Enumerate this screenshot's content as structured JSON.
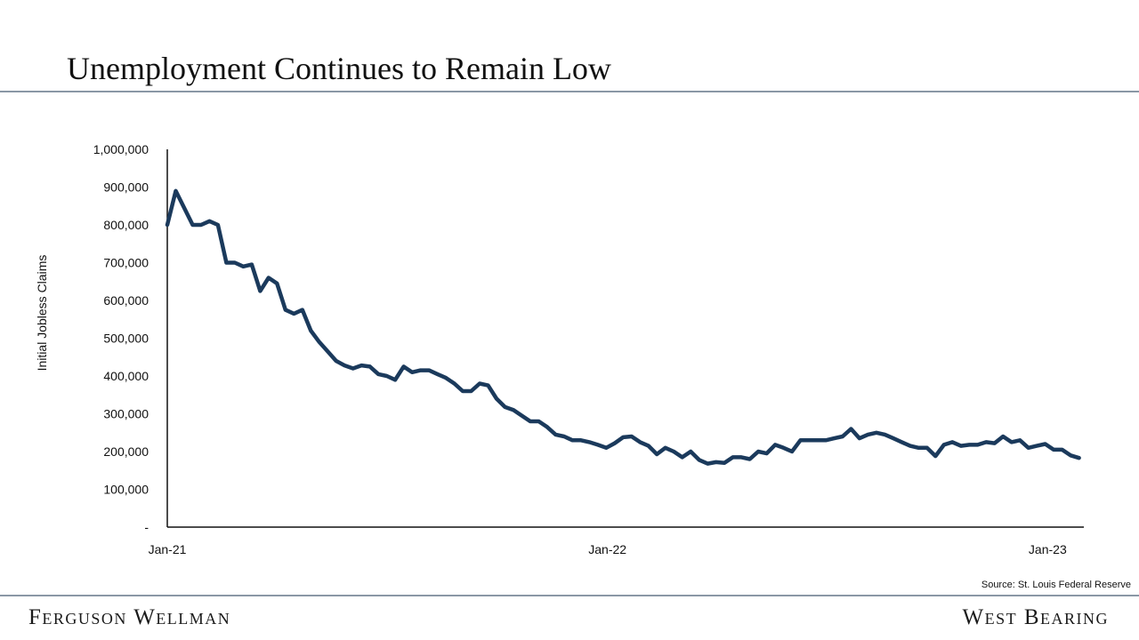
{
  "slide": {
    "title": "Unemployment Continues to Remain Low",
    "source": "Source: St. Louis Federal Reserve",
    "brand_left": "Ferguson Wellman",
    "brand_right": "West Bearing"
  },
  "colors": {
    "line": "#1b3a5c",
    "axis": "#111111",
    "rule": "#8a97a5"
  },
  "chart_data": {
    "type": "line",
    "title": "",
    "xlabel": "",
    "ylabel": "Initial Jobless Claims",
    "x_tick_labels": [
      "Jan-21",
      "Jan-22",
      "Jan-23"
    ],
    "x_start": "2021-01-01",
    "x_end": "2023-01-31",
    "y_tick_labels": [
      "-",
      "100,000",
      "200,000",
      "300,000",
      "400,000",
      "500,000",
      "600,000",
      "700,000",
      "800,000",
      "900,000",
      "1,000,000"
    ],
    "ylim": [
      0,
      1000000
    ],
    "grid": false,
    "legend": "none",
    "series": [
      {
        "name": "",
        "x": [
          "2021-01-01",
          "2021-01-08",
          "2021-01-15",
          "2021-01-22",
          "2021-01-29",
          "2021-02-05",
          "2021-02-12",
          "2021-02-19",
          "2021-02-26",
          "2021-03-05",
          "2021-03-12",
          "2021-03-19",
          "2021-03-26",
          "2021-04-02",
          "2021-04-09",
          "2021-04-16",
          "2021-04-23",
          "2021-04-30",
          "2021-05-07",
          "2021-05-14",
          "2021-05-21",
          "2021-05-28",
          "2021-06-04",
          "2021-06-11",
          "2021-06-18",
          "2021-06-25",
          "2021-07-02",
          "2021-07-09",
          "2021-07-16",
          "2021-07-23",
          "2021-07-30",
          "2021-08-06",
          "2021-08-13",
          "2021-08-20",
          "2021-08-27",
          "2021-09-03",
          "2021-09-10",
          "2021-09-17",
          "2021-09-24",
          "2021-10-01",
          "2021-10-08",
          "2021-10-15",
          "2021-10-22",
          "2021-10-29",
          "2021-11-05",
          "2021-11-12",
          "2021-11-19",
          "2021-11-26",
          "2021-12-03",
          "2021-12-10",
          "2021-12-17",
          "2021-12-24",
          "2021-12-31",
          "2022-01-07",
          "2022-01-14",
          "2022-01-21",
          "2022-01-28",
          "2022-02-04",
          "2022-02-11",
          "2022-02-18",
          "2022-02-25",
          "2022-03-04",
          "2022-03-11",
          "2022-03-18",
          "2022-03-25",
          "2022-04-01",
          "2022-04-08",
          "2022-04-15",
          "2022-04-22",
          "2022-04-29",
          "2022-05-06",
          "2022-05-13",
          "2022-05-20",
          "2022-05-27",
          "2022-06-03",
          "2022-06-10",
          "2022-06-17",
          "2022-06-24",
          "2022-07-01",
          "2022-07-08",
          "2022-07-15",
          "2022-07-22",
          "2022-07-29",
          "2022-08-05",
          "2022-08-12",
          "2022-08-19",
          "2022-08-26",
          "2022-09-02",
          "2022-09-09",
          "2022-09-16",
          "2022-09-23",
          "2022-09-30",
          "2022-10-07",
          "2022-10-14",
          "2022-10-21",
          "2022-10-28",
          "2022-11-04",
          "2022-11-11",
          "2022-11-18",
          "2022-11-25",
          "2022-12-02",
          "2022-12-09",
          "2022-12-16",
          "2022-12-23",
          "2022-12-30",
          "2023-01-06",
          "2023-01-13",
          "2023-01-20",
          "2023-01-27"
        ],
        "values": [
          800000,
          890000,
          845000,
          800000,
          800000,
          810000,
          800000,
          700000,
          700000,
          690000,
          695000,
          625000,
          660000,
          645000,
          575000,
          565000,
          575000,
          520000,
          490000,
          465000,
          440000,
          428000,
          420000,
          428000,
          425000,
          405000,
          400000,
          390000,
          425000,
          410000,
          415000,
          415000,
          405000,
          395000,
          380000,
          360000,
          360000,
          380000,
          375000,
          340000,
          318000,
          310000,
          295000,
          280000,
          280000,
          265000,
          245000,
          240000,
          230000,
          230000,
          225000,
          218000,
          210000,
          222000,
          238000,
          240000,
          225000,
          215000,
          193000,
          210000,
          200000,
          185000,
          200000,
          178000,
          168000,
          172000,
          170000,
          185000,
          185000,
          180000,
          200000,
          195000,
          218000,
          210000,
          200000,
          230000,
          230000,
          230000,
          230000,
          235000,
          240000,
          260000,
          235000,
          245000,
          250000,
          245000,
          235000,
          225000,
          215000,
          210000,
          210000,
          188000,
          218000,
          225000,
          215000,
          218000,
          218000,
          225000,
          222000,
          240000,
          225000,
          230000,
          210000,
          215000,
          220000,
          205000,
          205000,
          190000,
          183000
        ]
      }
    ]
  }
}
